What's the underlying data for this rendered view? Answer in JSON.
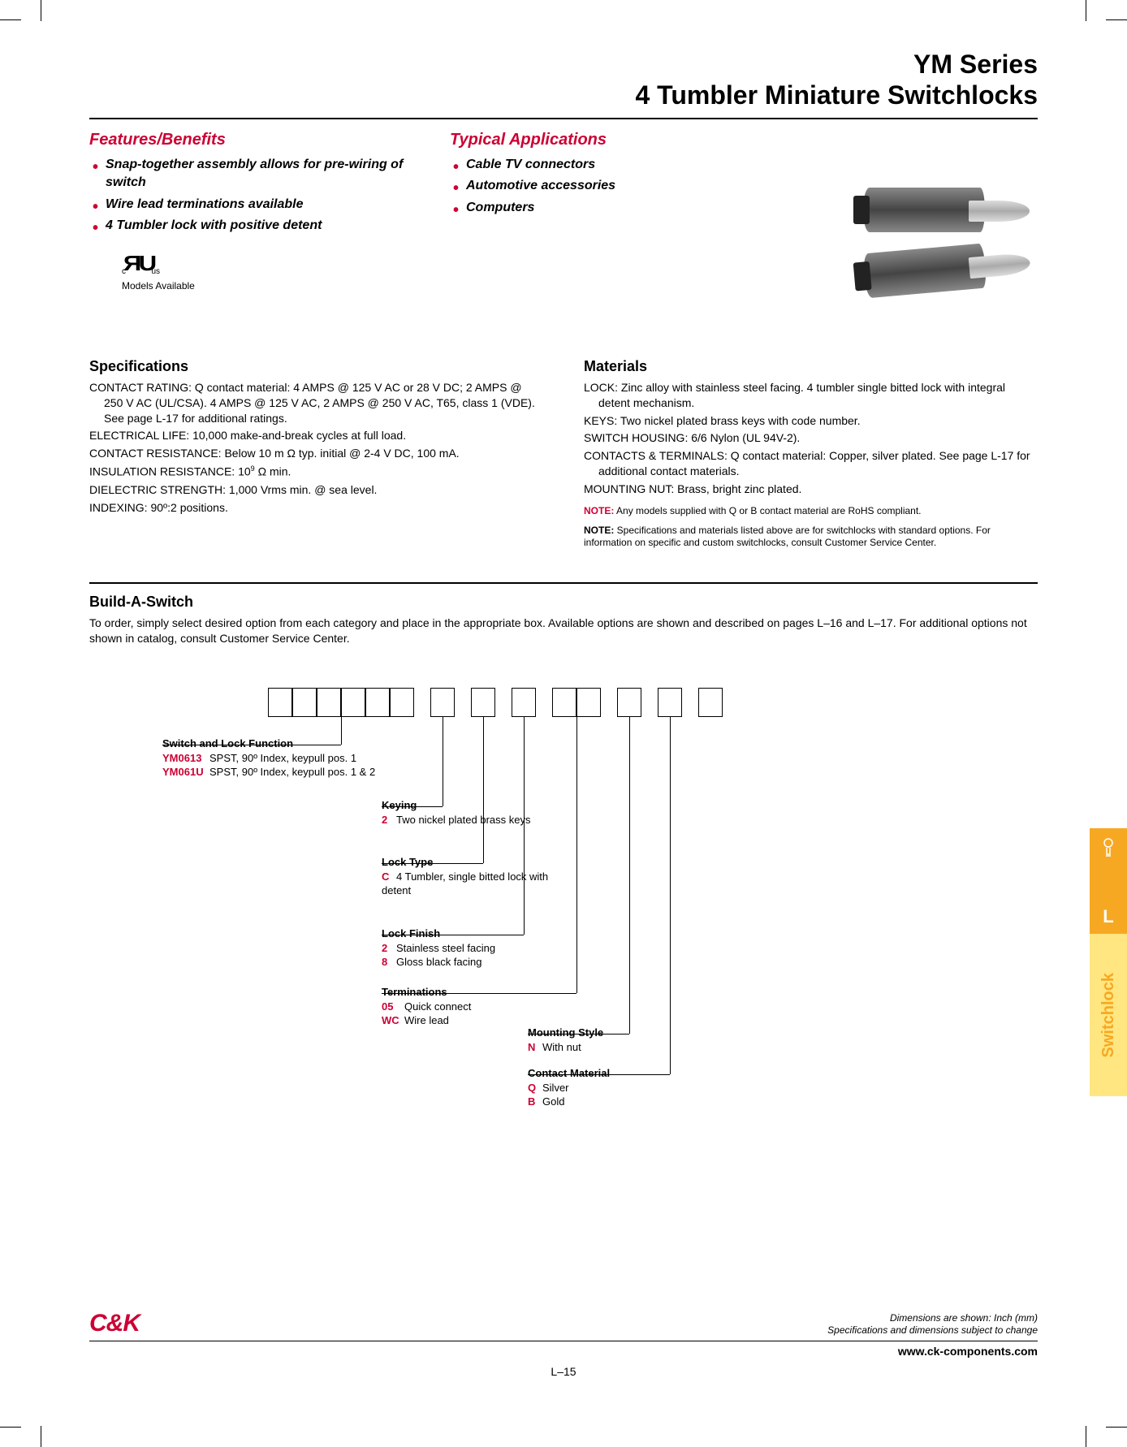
{
  "title_line1": "YM Series",
  "title_line2": "4 Tumbler Miniature Switchlocks",
  "features_heading": "Features/Benefits",
  "features": [
    "Snap-together assembly allows for pre-wiring of switch",
    "Wire lead terminations available",
    "4 Tumbler lock with positive detent"
  ],
  "applications_heading": "Typical Applications",
  "applications": [
    "Cable TV connectors",
    "Automotive accessories",
    "Computers"
  ],
  "cert_models": "Models Available",
  "spec_heading": "Specifications",
  "specs": [
    "CONTACT RATING: Q contact material: 4 AMPS @ 125 V AC or 28 V DC; 2 AMPS @ 250 V AC (UL/CSA). 4 AMPS @ 125 V AC, 2 AMPS @ 250 V AC, T65, class 1 (VDE). See page L-17 for additional ratings.",
    "ELECTRICAL LIFE: 10,000 make-and-break cycles at full load.",
    "CONTACT RESISTANCE: Below 10 m Ω typ. initial @ 2-4 V DC, 100 mA.",
    "INSULATION RESISTANCE: 10⁹ Ω min.",
    "DIELECTRIC STRENGTH: 1,000 Vrms min. @ sea level.",
    "INDEXING: 90º:2 positions."
  ],
  "materials_heading": "Materials",
  "materials": [
    "LOCK: Zinc alloy with stainless steel facing. 4 tumbler single bitted lock with integral detent mechanism.",
    "KEYS: Two nickel plated brass keys with code number.",
    "SWITCH HOUSING: 6/6 Nylon (UL 94V-2).",
    "CONTACTS & TERMINALS: Q contact material: Copper, silver plated. See page L-17 for additional contact materials.",
    "MOUNTING NUT: Brass, bright zinc plated."
  ],
  "note_red_label": "NOTE:",
  "note_red": " Any models supplied with Q or B contact material are RoHS compliant.",
  "note2_label": "NOTE:",
  "note2": " Specifications and materials listed above are for switchlocks with standard options. For information on specific and custom switchlocks, consult Customer Service Center.",
  "build_heading": "Build-A-Switch",
  "build_desc": "To order, simply select desired option from each category and place in the appropriate box. Available options are shown and described on pages L–16 and L–17. For additional options not shown in catalog, consult Customer Service Center.",
  "box_groups": [
    6,
    1,
    1,
    1,
    2,
    1,
    1,
    1
  ],
  "options": {
    "switch_fn": {
      "title": "Switch and Lock Function",
      "rows": [
        {
          "code": "YM0613",
          "desc": "SPST, 90º Index, keypull pos. 1"
        },
        {
          "code": "YM061U",
          "desc": "SPST, 90º Index, keypull pos. 1 & 2"
        }
      ]
    },
    "keying": {
      "title": "Keying",
      "rows": [
        {
          "code": "2",
          "desc": "Two nickel plated brass keys"
        }
      ]
    },
    "lock_type": {
      "title": "Lock Type",
      "rows": [
        {
          "code": "C",
          "desc": "4 Tumbler, single bitted lock with detent"
        }
      ]
    },
    "lock_finish": {
      "title": "Lock Finish",
      "rows": [
        {
          "code": "2",
          "desc": "Stainless steel facing"
        },
        {
          "code": "8",
          "desc": "Gloss black facing"
        }
      ]
    },
    "terminations": {
      "title": "Terminations",
      "rows": [
        {
          "code": "05",
          "desc": "Quick connect"
        },
        {
          "code": "WC",
          "desc": "Wire lead"
        }
      ]
    },
    "mounting": {
      "title": "Mounting Style",
      "rows": [
        {
          "code": "N",
          "desc": "With nut"
        }
      ]
    },
    "contact": {
      "title": "Contact Material",
      "rows": [
        {
          "code": "Q",
          "desc": "Silver"
        },
        {
          "code": "B",
          "desc": "Gold"
        }
      ]
    }
  },
  "side_tab": {
    "letter": "L",
    "label": "Switchlock"
  },
  "footer": {
    "logo": "C&K",
    "dims1": "Dimensions are shown: Inch (mm)",
    "dims2": "Specifications and dimensions subject to change",
    "url": "www.ck-components.com",
    "page": "L–15"
  },
  "colors": {
    "accent": "#cc0033",
    "tab_orange": "#f7a823",
    "tab_yellow": "#ffe680"
  }
}
